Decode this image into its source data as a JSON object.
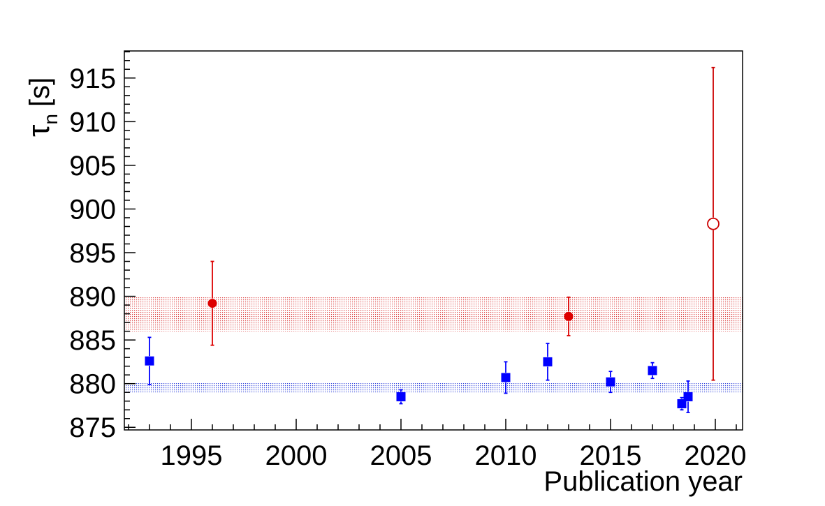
{
  "chart_data": {
    "type": "scatter",
    "xlabel": "Publication year",
    "ylabel": "τ",
    "ylabel_subscript": "n",
    "ylabel_unit": "[s]",
    "xlim": [
      1991.8,
      2021.3
    ],
    "ylim": [
      874.7,
      918.1
    ],
    "xticks": [
      "1995",
      "2000",
      "2005",
      "2010",
      "2015",
      "2020"
    ],
    "xtick_values": [
      1995,
      2000,
      2005,
      2010,
      2015,
      2020
    ],
    "yticks": [
      "875",
      "880",
      "885",
      "890",
      "895",
      "900",
      "905",
      "910",
      "915"
    ],
    "ytick_values": [
      875,
      880,
      885,
      890,
      895,
      900,
      905,
      910,
      915
    ],
    "bands": [
      {
        "color": "#cc0000",
        "y_low": 886.0,
        "y_high": 890.0
      },
      {
        "color": "#0000cc",
        "y_low": 879.0,
        "y_high": 880.1
      }
    ],
    "series": [
      {
        "marker": "filled-square",
        "color": "#0000ff",
        "points": [
          {
            "x": 1993.0,
            "y": 882.6,
            "err": 2.7
          },
          {
            "x": 2005.0,
            "y": 878.5,
            "err": 0.8
          },
          {
            "x": 2010.0,
            "y": 880.7,
            "err": 1.8
          },
          {
            "x": 2012.0,
            "y": 882.5,
            "err": 2.1
          },
          {
            "x": 2015.0,
            "y": 880.2,
            "err": 1.2
          },
          {
            "x": 2017.0,
            "y": 881.5,
            "err": 0.9
          },
          {
            "x": 2018.4,
            "y": 877.7,
            "err": 0.7
          },
          {
            "x": 2018.7,
            "y": 878.5,
            "err": 1.8
          }
        ]
      },
      {
        "marker": "filled-circle",
        "color": "#dd0000",
        "points": [
          {
            "x": 1996.0,
            "y": 889.2,
            "err": 4.8
          },
          {
            "x": 2013.0,
            "y": 887.7,
            "err": 2.2
          }
        ]
      },
      {
        "marker": "open-circle",
        "color": "#cc0000",
        "points": [
          {
            "x": 2019.9,
            "y": 898.3,
            "err": 17.9
          }
        ]
      }
    ]
  }
}
